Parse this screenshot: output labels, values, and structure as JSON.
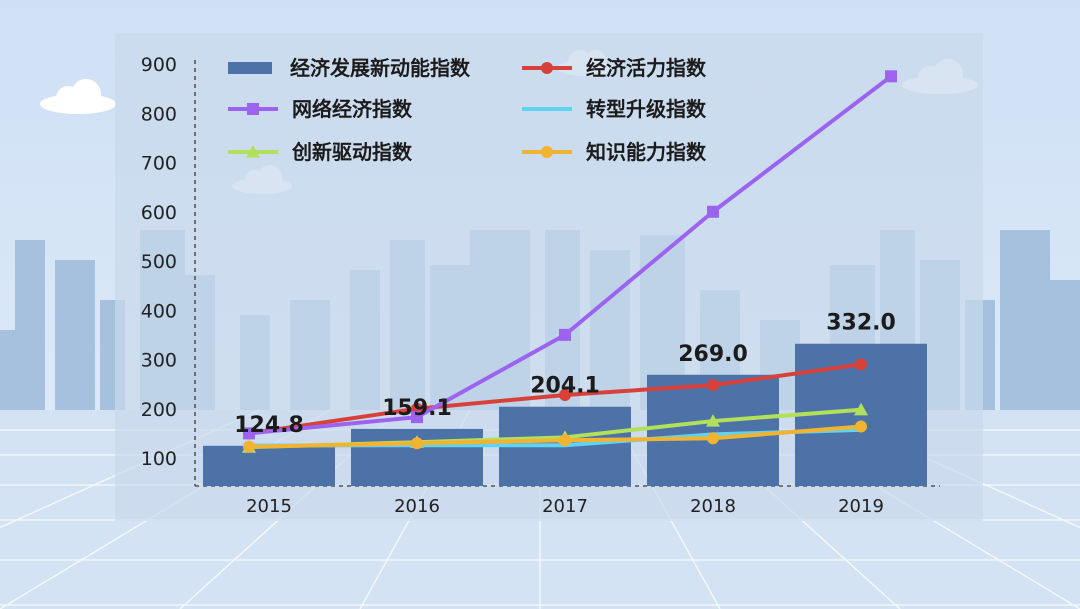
{
  "chart_data": {
    "type": "bar",
    "categories": [
      "2015",
      "2016",
      "2017",
      "2018",
      "2019"
    ],
    "ylim": [
      100,
      900
    ],
    "yticks": [
      100,
      200,
      300,
      400,
      500,
      600,
      700,
      800,
      900
    ],
    "bar_series": {
      "name": "经济发展新动能指数",
      "values": [
        124.8,
        159.1,
        204.1,
        269.0,
        332.0
      ],
      "labels": [
        "124.8",
        "159.1",
        "204.1",
        "269.0",
        "332.0"
      ],
      "color": "#4d72a8"
    },
    "line_series": [
      {
        "name": "经济活力指数",
        "values": [
          150,
          200,
          228,
          248,
          290
        ],
        "color": "#d8413a",
        "marker": "circle"
      },
      {
        "name": "网络经济指数",
        "values": [
          150,
          183,
          350,
          600,
          875
        ],
        "color": "#9b63f0",
        "marker": "square"
      },
      {
        "name": "转型升级指数",
        "values": [
          125,
          126,
          126,
          148,
          157
        ],
        "color": "#5fd3f2",
        "marker": "none"
      },
      {
        "name": "创新驱动指数",
        "values": [
          122,
          132,
          142,
          175,
          198
        ],
        "color": "#b3e05a",
        "marker": "triangle"
      },
      {
        "name": "知识能力指数",
        "values": [
          123,
          130,
          136,
          140,
          164
        ],
        "color": "#f2b330",
        "marker": "circle"
      }
    ],
    "grid": false,
    "legend_position": "top"
  }
}
